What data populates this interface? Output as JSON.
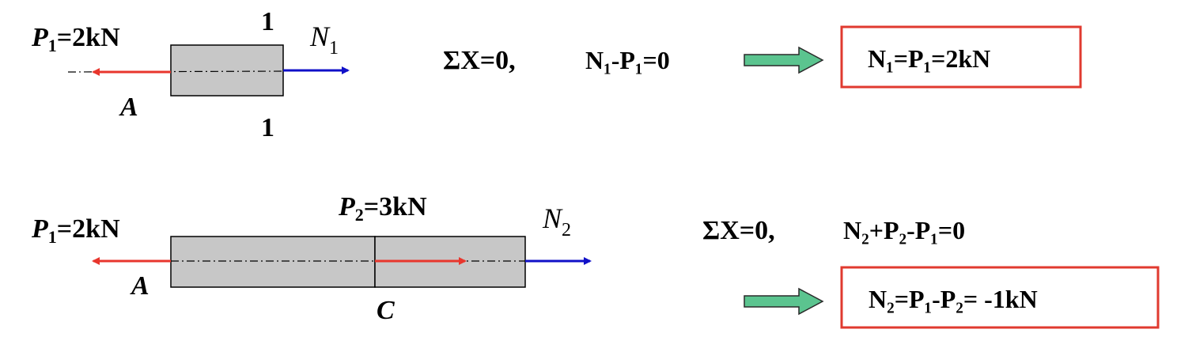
{
  "colors": {
    "bar_fill": "#c7c7c7",
    "bar_stroke": "#000000",
    "red_arrow": "#e8362d",
    "blue_arrow": "#1010c8",
    "green_arrow_fill": "#5bc48f",
    "box_border": "#e03a2f"
  },
  "diagram1": {
    "p1_symbol": "P",
    "p1_sub": "1",
    "p1_value": "=2kN",
    "section_top": "1",
    "section_bottom": "1",
    "n1_symbol": "N",
    "n1_sub": "1",
    "point_a": "A",
    "equilibrium": "ΣX=0,",
    "equation": "N₁-P₁=0",
    "result": "N₁=P₁=2kN"
  },
  "diagram2": {
    "p1_symbol": "P",
    "p1_sub": "1",
    "p1_value": "=2kN",
    "p2_symbol": "P",
    "p2_sub": "2",
    "p2_value": "=3kN",
    "n2_symbol": "N",
    "n2_sub": "2",
    "point_a": "A",
    "point_c": "C",
    "equilibrium": "ΣX=0,",
    "equation": "N₂+P₂-P₁=0",
    "result": "N₂=P₁-P₂= -1kN"
  }
}
